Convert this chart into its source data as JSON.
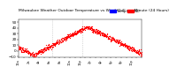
{
  "title": "Milwaukee Weather Outdoor Temperature vs Wind Chill per Minute (24 Hours)",
  "title_fontsize": 3.2,
  "bg_color": "#ffffff",
  "dot_color": "#ff0000",
  "dot_size": 0.8,
  "ylim": [
    -12,
    55
  ],
  "xlim": [
    0,
    1440
  ],
  "yticks": [
    -10,
    0,
    10,
    20,
    30,
    40,
    50
  ],
  "ytick_fontsize": 3.0,
  "xtick_fontsize": 2.5,
  "vline_positions": [
    390,
    750
  ],
  "vline_color": "#bbbbbb",
  "legend_blue_color": "#0000ff",
  "legend_red_color": "#ff0000",
  "legend_label_temp": "Temp",
  "legend_label_wc": "WC"
}
